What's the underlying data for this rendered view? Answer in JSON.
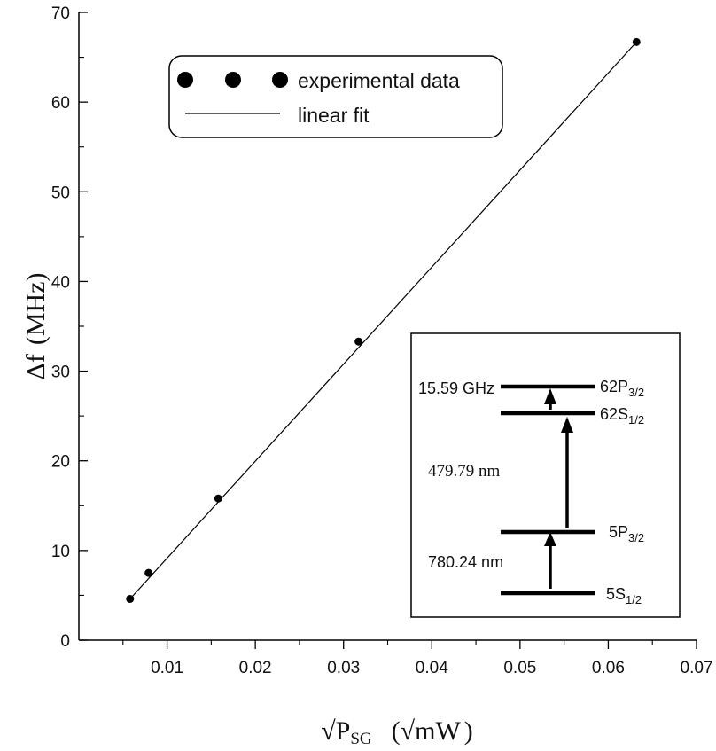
{
  "chart_data": {
    "type": "scatter",
    "title": "",
    "xlabel": {
      "root": "√",
      "base": "P",
      "sub": "SG",
      "unit_open": "(",
      "unit_root": "√",
      "unit": "mW",
      "unit_close": ")"
    },
    "ylabel": {
      "delta": "Δf",
      "unit": "(MHz)"
    },
    "xlim": [
      0,
      0.07
    ],
    "ylim": [
      0,
      70
    ],
    "xticks": [
      "0.01",
      "0.02",
      "0.03",
      "0.04",
      "0.05",
      "0.06",
      "0.07"
    ],
    "yticks": [
      "0",
      "10",
      "20",
      "30",
      "40",
      "50",
      "60",
      "70"
    ],
    "series": [
      {
        "name": "experimental data",
        "marker": "circle",
        "x": [
          0.0058,
          0.0079,
          0.0158,
          0.0317,
          0.0632
        ],
        "y": [
          4.6,
          7.5,
          15.8,
          33.3,
          66.7
        ]
      },
      {
        "name": "linear fit",
        "style": "line",
        "x": [
          0.0058,
          0.0632
        ],
        "y": [
          4.6,
          66.7
        ]
      }
    ],
    "legend": {
      "position": "top-left",
      "entries": [
        "experimental data",
        "linear fit"
      ]
    },
    "inset": {
      "levels": [
        {
          "base": "62P",
          "sub": "3/2"
        },
        {
          "base": "62S",
          "sub": "1/2"
        },
        {
          "base": "5P",
          "sub": "3/2"
        },
        {
          "base": "5S",
          "sub": "1/2"
        }
      ],
      "transitions": [
        "15.59 GHz",
        "479.79 nm",
        "780.24 nm"
      ]
    }
  }
}
